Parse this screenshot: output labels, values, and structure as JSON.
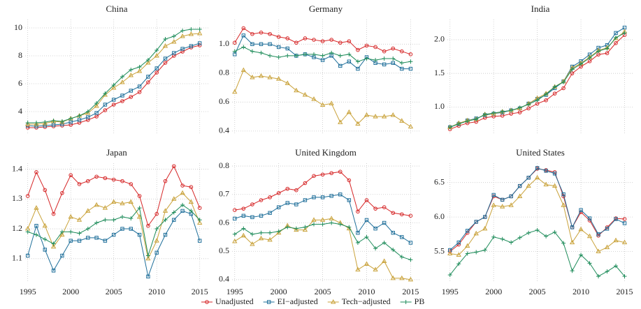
{
  "chart_data": [
    {
      "type": "line",
      "title": "China",
      "x": [
        1995,
        1996,
        1997,
        1998,
        1999,
        2000,
        2001,
        2002,
        2003,
        2004,
        2005,
        2006,
        2007,
        2008,
        2009,
        2010,
        2011,
        2012,
        2013,
        2014,
        2015
      ],
      "xlim": [
        1994.7,
        2016
      ],
      "xticks": [
        1995,
        2000,
        2005,
        2010,
        2015
      ],
      "ylim": [
        2.4,
        10.6
      ],
      "yticks": [
        4,
        6,
        8,
        10
      ],
      "grid": true,
      "series": [
        {
          "name": "Unadjusted",
          "color": "#d62728",
          "marker": "circle",
          "values": [
            2.85,
            2.85,
            2.9,
            2.95,
            3.0,
            3.05,
            3.2,
            3.4,
            3.65,
            4.1,
            4.5,
            4.75,
            5.05,
            5.4,
            6.1,
            6.8,
            7.5,
            8.0,
            8.3,
            8.6,
            8.75
          ]
        },
        {
          "name": "EI−adjusted",
          "color": "#1f6f9a",
          "marker": "square",
          "values": [
            3.0,
            2.95,
            3.0,
            3.05,
            3.1,
            3.25,
            3.4,
            3.6,
            3.9,
            4.5,
            4.85,
            5.15,
            5.5,
            5.8,
            6.5,
            7.1,
            7.8,
            8.2,
            8.5,
            8.7,
            8.9
          ]
        },
        {
          "name": "Tech−adjusted",
          "color": "#c9a23a",
          "marker": "triangle",
          "values": [
            3.1,
            3.1,
            3.15,
            3.3,
            3.25,
            3.5,
            3.7,
            3.9,
            4.4,
            5.2,
            5.7,
            6.1,
            6.6,
            6.9,
            7.5,
            8.0,
            8.7,
            9.0,
            9.4,
            9.55,
            9.6
          ]
        },
        {
          "name": "PB",
          "color": "#1e8c5a",
          "marker": "plus",
          "values": [
            3.2,
            3.2,
            3.25,
            3.35,
            3.3,
            3.5,
            3.7,
            4.0,
            4.6,
            5.3,
            5.9,
            6.5,
            7.0,
            7.2,
            7.7,
            8.4,
            9.2,
            9.4,
            9.8,
            9.9,
            9.9
          ]
        }
      ]
    },
    {
      "type": "line",
      "title": "Germany",
      "x": [
        1995,
        1996,
        1997,
        1998,
        1999,
        2000,
        2001,
        2002,
        2003,
        2004,
        2005,
        2006,
        2007,
        2008,
        2009,
        2010,
        2011,
        2012,
        2013,
        2014,
        2015
      ],
      "xlim": [
        1994.7,
        2016
      ],
      "xticks": [
        1995,
        2000,
        2005,
        2010,
        2015
      ],
      "ylim": [
        0.38,
        1.17
      ],
      "yticks": [
        0.4,
        0.6,
        0.8,
        {
          "value": 1,
          "label": "1.0"
        }
      ],
      "grid": true,
      "series": [
        {
          "name": "Unadjusted",
          "color": "#d62728",
          "marker": "circle",
          "values": [
            1.01,
            1.11,
            1.07,
            1.08,
            1.07,
            1.05,
            1.04,
            1.01,
            1.04,
            1.03,
            1.02,
            1.03,
            1.01,
            1.02,
            0.96,
            0.99,
            0.98,
            0.95,
            0.97,
            0.95,
            0.93
          ]
        },
        {
          "name": "EI−adjusted",
          "color": "#1f6f9a",
          "marker": "square",
          "values": [
            0.93,
            1.06,
            1.0,
            1.0,
            1.0,
            0.98,
            0.97,
            0.92,
            0.93,
            0.91,
            0.89,
            0.92,
            0.85,
            0.88,
            0.83,
            0.91,
            0.87,
            0.86,
            0.87,
            0.83,
            0.83
          ]
        },
        {
          "name": "Tech−adjusted",
          "color": "#c9a23a",
          "marker": "triangle",
          "values": [
            0.67,
            0.82,
            0.77,
            0.78,
            0.77,
            0.76,
            0.73,
            0.68,
            0.65,
            0.62,
            0.58,
            0.59,
            0.46,
            0.53,
            0.45,
            0.51,
            0.5,
            0.5,
            0.51,
            0.47,
            0.43
          ]
        },
        {
          "name": "PB",
          "color": "#1e8c5a",
          "marker": "plus",
          "values": [
            0.95,
            0.98,
            0.95,
            0.94,
            0.92,
            0.91,
            0.92,
            0.92,
            0.93,
            0.93,
            0.92,
            0.94,
            0.92,
            0.93,
            0.88,
            0.9,
            0.89,
            0.9,
            0.9,
            0.87,
            0.88
          ]
        }
      ]
    },
    {
      "type": "line",
      "title": "India",
      "x": [
        1995,
        1996,
        1997,
        1998,
        1999,
        2000,
        2001,
        2002,
        2003,
        2004,
        2005,
        2006,
        2007,
        2008,
        2009,
        2010,
        2011,
        2012,
        2013,
        2014,
        2015
      ],
      "xlim": [
        1994.7,
        2016
      ],
      "xticks": [
        1995,
        2000,
        2005,
        2010,
        2015
      ],
      "ylim": [
        0.6,
        2.3
      ],
      "yticks": [
        {
          "value": 1,
          "label": "1.0"
        },
        1.5,
        {
          "value": 2,
          "label": "2.0"
        }
      ],
      "grid": true,
      "series": [
        {
          "name": "Unadjusted",
          "color": "#d62728",
          "marker": "circle",
          "values": [
            0.67,
            0.72,
            0.76,
            0.78,
            0.84,
            0.86,
            0.87,
            0.9,
            0.92,
            0.98,
            1.05,
            1.1,
            1.2,
            1.28,
            1.5,
            1.6,
            1.68,
            1.78,
            1.8,
            1.95,
            2.07
          ]
        },
        {
          "name": "EI−adjusted",
          "color": "#1f6f9a",
          "marker": "square",
          "values": [
            0.7,
            0.75,
            0.8,
            0.83,
            0.88,
            0.9,
            0.92,
            0.95,
            0.98,
            1.05,
            1.12,
            1.18,
            1.28,
            1.38,
            1.6,
            1.68,
            1.78,
            1.88,
            1.92,
            2.1,
            2.18
          ]
        },
        {
          "name": "Tech−adjusted",
          "color": "#c9a23a",
          "marker": "triangle",
          "values": [
            0.7,
            0.76,
            0.8,
            0.82,
            0.89,
            0.9,
            0.93,
            0.95,
            0.98,
            1.05,
            1.13,
            1.2,
            1.3,
            1.38,
            1.58,
            1.65,
            1.74,
            1.84,
            1.88,
            2.02,
            2.12
          ]
        },
        {
          "name": "PB",
          "color": "#1e8c5a",
          "marker": "plus",
          "values": [
            0.7,
            0.75,
            0.79,
            0.82,
            0.89,
            0.91,
            0.93,
            0.95,
            0.99,
            1.04,
            1.1,
            1.19,
            1.3,
            1.37,
            1.56,
            1.64,
            1.73,
            1.83,
            1.87,
            2.03,
            2.1
          ]
        }
      ]
    },
    {
      "type": "line",
      "title": "Japan",
      "x": [
        1995,
        1996,
        1997,
        1998,
        1999,
        2000,
        2001,
        2002,
        2003,
        2004,
        2005,
        2006,
        2007,
        2008,
        2009,
        2010,
        2011,
        2012,
        2013,
        2014,
        2015
      ],
      "xlim": [
        1994.7,
        2016
      ],
      "xticks": [
        1995,
        2000,
        2005,
        2010,
        2015
      ],
      "ylim": [
        1.02,
        1.42
      ],
      "yticks": [
        1.1,
        1.2,
        1.3,
        1.4
      ],
      "grid": true,
      "series": [
        {
          "name": "Unadjusted",
          "color": "#d62728",
          "marker": "circle",
          "values": [
            1.31,
            1.39,
            1.33,
            1.25,
            1.32,
            1.38,
            1.35,
            1.36,
            1.375,
            1.37,
            1.365,
            1.36,
            1.35,
            1.31,
            1.21,
            1.25,
            1.36,
            1.41,
            1.345,
            1.34,
            1.27
          ]
        },
        {
          "name": "EI−adjusted",
          "color": "#1f6f9a",
          "marker": "square",
          "values": [
            1.11,
            1.21,
            1.13,
            1.06,
            1.11,
            1.16,
            1.16,
            1.17,
            1.17,
            1.16,
            1.18,
            1.2,
            1.2,
            1.18,
            1.04,
            1.12,
            1.18,
            1.23,
            1.26,
            1.25,
            1.16
          ]
        },
        {
          "name": "Tech−adjusted",
          "color": "#c9a23a",
          "marker": "triangle",
          "values": [
            1.2,
            1.27,
            1.21,
            1.14,
            1.18,
            1.24,
            1.23,
            1.26,
            1.28,
            1.27,
            1.29,
            1.285,
            1.29,
            1.24,
            1.1,
            1.16,
            1.26,
            1.3,
            1.32,
            1.29,
            1.22
          ]
        },
        {
          "name": "PB",
          "color": "#1e8c5a",
          "marker": "plus",
          "values": [
            1.19,
            1.18,
            1.165,
            1.15,
            1.19,
            1.19,
            1.185,
            1.2,
            1.22,
            1.23,
            1.23,
            1.24,
            1.235,
            1.27,
            1.11,
            1.2,
            1.23,
            1.255,
            1.28,
            1.26,
            1.23
          ]
        }
      ]
    },
    {
      "type": "line",
      "title": "United Kingdom",
      "x": [
        1995,
        1996,
        1997,
        1998,
        1999,
        2000,
        2001,
        2002,
        2003,
        2004,
        2005,
        2006,
        2007,
        2008,
        2009,
        2010,
        2011,
        2012,
        2013,
        2014,
        2015
      ],
      "xlim": [
        1994.7,
        2016
      ],
      "xticks": [
        1995,
        2000,
        2005,
        2010,
        2015
      ],
      "ylim": [
        0.39,
        0.81
      ],
      "yticks": [
        0.4,
        0.5,
        0.6,
        0.7,
        0.8
      ],
      "grid": true,
      "series": [
        {
          "name": "Unadjusted",
          "color": "#d62728",
          "marker": "circle",
          "values": [
            0.645,
            0.65,
            0.665,
            0.68,
            0.69,
            0.705,
            0.72,
            0.715,
            0.74,
            0.765,
            0.77,
            0.775,
            0.78,
            0.75,
            0.64,
            0.68,
            0.65,
            0.655,
            0.635,
            0.63,
            0.625
          ]
        },
        {
          "name": "EI−adjusted",
          "color": "#1f6f9a",
          "marker": "square",
          "values": [
            0.615,
            0.625,
            0.62,
            0.625,
            0.635,
            0.655,
            0.67,
            0.665,
            0.68,
            0.69,
            0.69,
            0.695,
            0.7,
            0.68,
            0.565,
            0.61,
            0.58,
            0.6,
            0.565,
            0.55,
            0.53
          ]
        },
        {
          "name": "Tech−adjusted",
          "color": "#c9a23a",
          "marker": "triangle",
          "values": [
            0.535,
            0.555,
            0.525,
            0.545,
            0.54,
            0.565,
            0.59,
            0.575,
            0.575,
            0.61,
            0.61,
            0.615,
            0.6,
            0.58,
            0.435,
            0.455,
            0.435,
            0.465,
            0.405,
            0.405,
            0.4
          ]
        },
        {
          "name": "PB",
          "color": "#1e8c5a",
          "marker": "plus",
          "values": [
            0.56,
            0.58,
            0.56,
            0.565,
            0.565,
            0.57,
            0.585,
            0.58,
            0.585,
            0.595,
            0.595,
            0.6,
            0.595,
            0.585,
            0.53,
            0.55,
            0.51,
            0.53,
            0.505,
            0.48,
            0.47
          ]
        }
      ]
    },
    {
      "type": "line",
      "title": "United States",
      "x": [
        1995,
        1996,
        1997,
        1998,
        1999,
        2000,
        2001,
        2002,
        2003,
        2004,
        2005,
        2006,
        2007,
        2008,
        2009,
        2010,
        2011,
        2012,
        2013,
        2014,
        2015
      ],
      "xlim": [
        1994.7,
        2016
      ],
      "xticks": [
        1995,
        2000,
        2005,
        2010,
        2015
      ],
      "ylim": [
        5.05,
        6.78
      ],
      "yticks": [
        5.5,
        {
          "value": 6,
          "label": "6.0"
        },
        6.5
      ],
      "grid": true,
      "series": [
        {
          "name": "Unadjusted",
          "color": "#d62728",
          "marker": "circle",
          "values": [
            5.5,
            5.6,
            5.77,
            5.93,
            6.0,
            6.3,
            6.25,
            6.3,
            6.45,
            6.57,
            6.7,
            6.68,
            6.65,
            6.3,
            5.85,
            6.07,
            5.95,
            5.73,
            5.85,
            5.98,
            5.97
          ]
        },
        {
          "name": "EI−adjusted",
          "color": "#1f6f9a",
          "marker": "square",
          "values": [
            5.52,
            5.63,
            5.8,
            5.93,
            6.0,
            6.32,
            6.25,
            6.3,
            6.45,
            6.57,
            6.71,
            6.67,
            6.63,
            6.33,
            5.85,
            6.1,
            5.98,
            5.75,
            5.83,
            5.97,
            5.91
          ]
        },
        {
          "name": "Tech−adjusted",
          "color": "#c9a23a",
          "marker": "triangle",
          "values": [
            5.47,
            5.45,
            5.58,
            5.76,
            5.83,
            6.17,
            6.15,
            6.17,
            6.3,
            6.45,
            6.57,
            6.47,
            6.45,
            6.17,
            5.63,
            5.82,
            5.72,
            5.5,
            5.56,
            5.66,
            5.63
          ]
        },
        {
          "name": "PB",
          "color": "#1e8c5a",
          "marker": "plus",
          "values": [
            5.16,
            5.32,
            5.47,
            5.49,
            5.52,
            5.71,
            5.68,
            5.63,
            5.7,
            5.77,
            5.81,
            5.72,
            5.78,
            5.62,
            5.22,
            5.45,
            5.33,
            5.14,
            5.21,
            5.29,
            5.14
          ]
        }
      ]
    }
  ]
}
